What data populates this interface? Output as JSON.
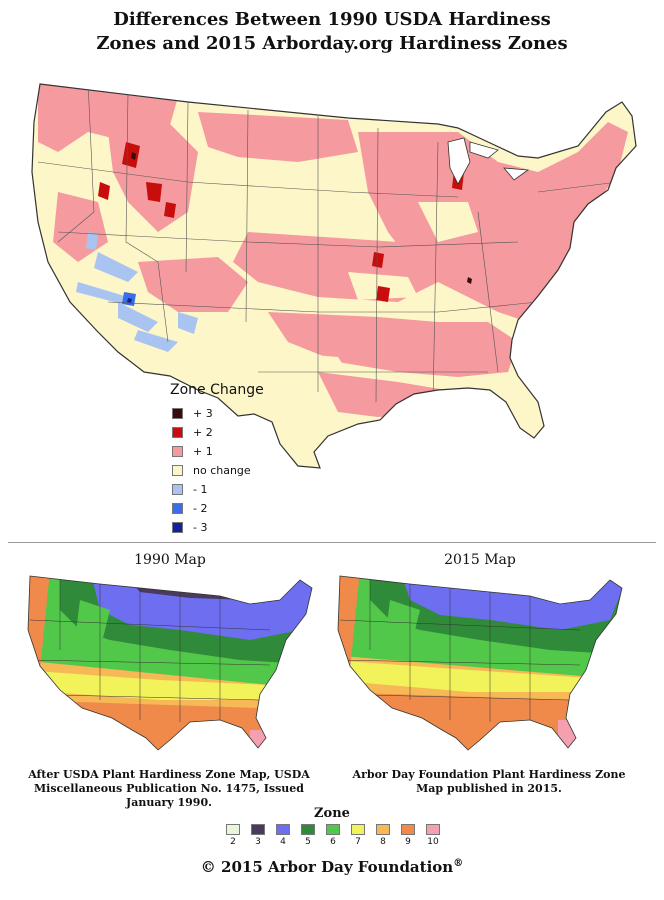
{
  "title": {
    "line1": "Differences Between 1990 USDA Hardiness",
    "line2": "Zones and 2015 Arborday.org Hardiness Zones"
  },
  "legend": {
    "title": "Zone Change",
    "items": [
      {
        "label": "+ 3",
        "color": "#3b0a0a"
      },
      {
        "label": "+ 2",
        "color": "#c80d0d"
      },
      {
        "label": "+ 1",
        "color": "#f59a9e"
      },
      {
        "label": "no change",
        "color": "#fdf6c8"
      },
      {
        "label": "- 1",
        "color": "#a9c4f0"
      },
      {
        "label": "- 2",
        "color": "#3a6ee8"
      },
      {
        "label": "- 3",
        "color": "#14219a"
      }
    ]
  },
  "maps": {
    "left": {
      "title": "1990 Map",
      "caption": [
        "After USDA Plant Hardiness Zone Map, USDA",
        "Miscellaneous Publication No. 1475, Issued",
        "January 1990."
      ]
    },
    "right": {
      "title": "2015 Map",
      "caption": [
        "Arbor Day Foundation Plant Hardiness Zone",
        "Map published in 2015."
      ]
    }
  },
  "zones": {
    "title": "Zone",
    "items": [
      {
        "label": "2",
        "color": "#e7f6dd"
      },
      {
        "label": "3",
        "color": "#4a3a5e"
      },
      {
        "label": "4",
        "color": "#6e6ef0"
      },
      {
        "label": "5",
        "color": "#2f8a3a"
      },
      {
        "label": "6",
        "color": "#52c84a"
      },
      {
        "label": "7",
        "color": "#f2f25a"
      },
      {
        "label": "8",
        "color": "#f7b856"
      },
      {
        "label": "9",
        "color": "#f08a4a"
      },
      {
        "label": "10",
        "color": "#f4a0b0"
      }
    ]
  },
  "copyright": {
    "text": "© 2015 Arbor Day Foundation",
    "mark": "®"
  }
}
